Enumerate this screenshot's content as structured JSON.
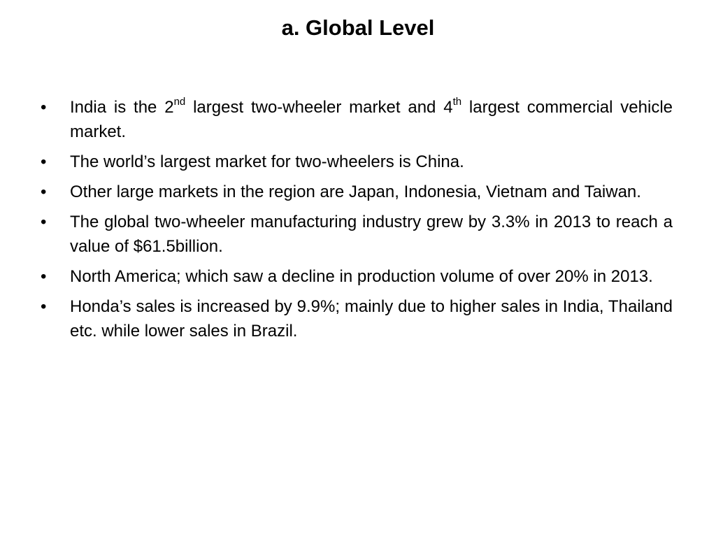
{
  "slide": {
    "title": "a. Global Level",
    "bullet_symbol": "•",
    "bullets": [
      {
        "parts": [
          {
            "text": "India is the 2"
          },
          {
            "sup": "nd"
          },
          {
            "text": " largest two-wheeler market and 4"
          },
          {
            "sup": "th"
          },
          {
            "text": " largest commercial vehicle market."
          }
        ]
      },
      {
        "parts": [
          {
            "text": "The world’s largest market for two-wheelers is China."
          }
        ]
      },
      {
        "parts": [
          {
            "text": "Other large markets in the region are Japan, Indonesia, Vietnam and Taiwan."
          }
        ]
      },
      {
        "parts": [
          {
            "text": "The global two-wheeler manufacturing industry grew by 3.3% in 2013 to reach a value of $61.5billion."
          }
        ]
      },
      {
        "parts": [
          {
            "text": "North America; which saw a decline in production volume of over 20% in 2013."
          }
        ]
      },
      {
        "parts": [
          {
            "text": "Honda’s sales is increased by 9.9%; mainly due to higher sales in India, Thailand etc. while lower sales in Brazil."
          }
        ]
      }
    ]
  }
}
